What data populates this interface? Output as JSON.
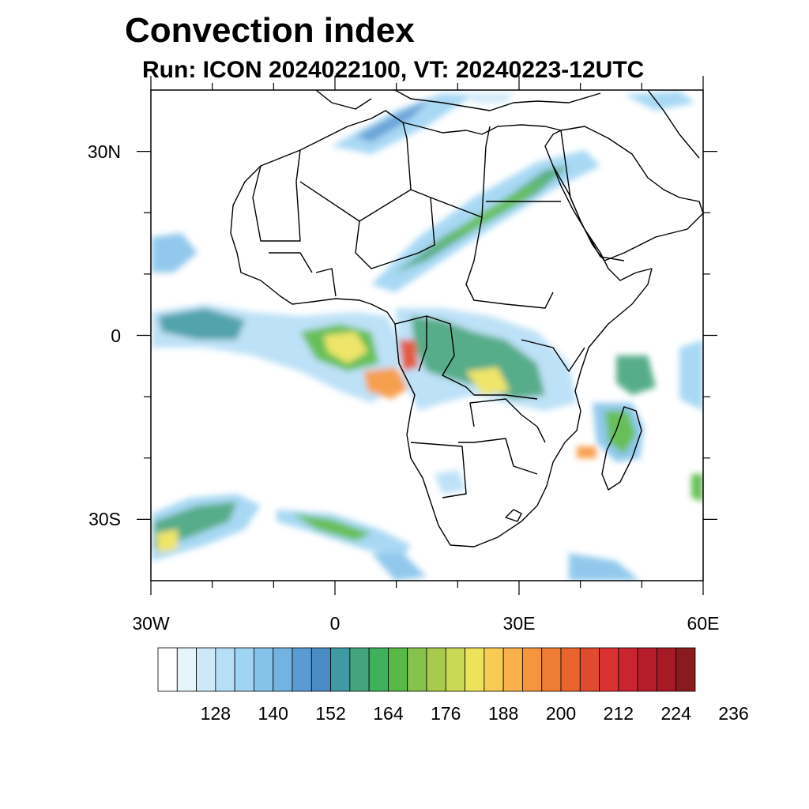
{
  "title": "Convection index",
  "subtitle": "Run: ICON 2024022100,  VT: 20240223-12UTC",
  "map": {
    "extent": {
      "lon_min": -30,
      "lon_max": 60,
      "lat_min": -40,
      "lat_max": 40
    },
    "lat_labels": [
      {
        "lat": 30,
        "text": "30N"
      },
      {
        "lat": 0,
        "text": "0"
      },
      {
        "lat": -30,
        "text": "30S"
      }
    ],
    "lon_labels": [
      {
        "lon": -30,
        "text": "30W"
      },
      {
        "lon": 0,
        "text": "0"
      },
      {
        "lon": 30,
        "text": "30E"
      },
      {
        "lon": 60,
        "text": "60E"
      }
    ]
  },
  "colorbar": {
    "colors": [
      "#ffffff",
      "#e6f4fb",
      "#cde9f8",
      "#b6def6",
      "#9fd4f3",
      "#86c3ea",
      "#73b3e2",
      "#5b9bd4",
      "#4a8cc4",
      "#3f9aa4",
      "#44a47e",
      "#3fb05b",
      "#58b947",
      "#86c34d",
      "#a8cb4d",
      "#cad856",
      "#ede35a",
      "#f8cc53",
      "#f7b04a",
      "#f5963e",
      "#f07d33",
      "#ea6430",
      "#e04b2e",
      "#d93230",
      "#c92430",
      "#b81d2b",
      "#a51a24",
      "#8b1a1e"
    ],
    "labels": [
      "128",
      "140",
      "152",
      "164",
      "176",
      "188",
      "200",
      "212",
      "224",
      "236"
    ]
  }
}
